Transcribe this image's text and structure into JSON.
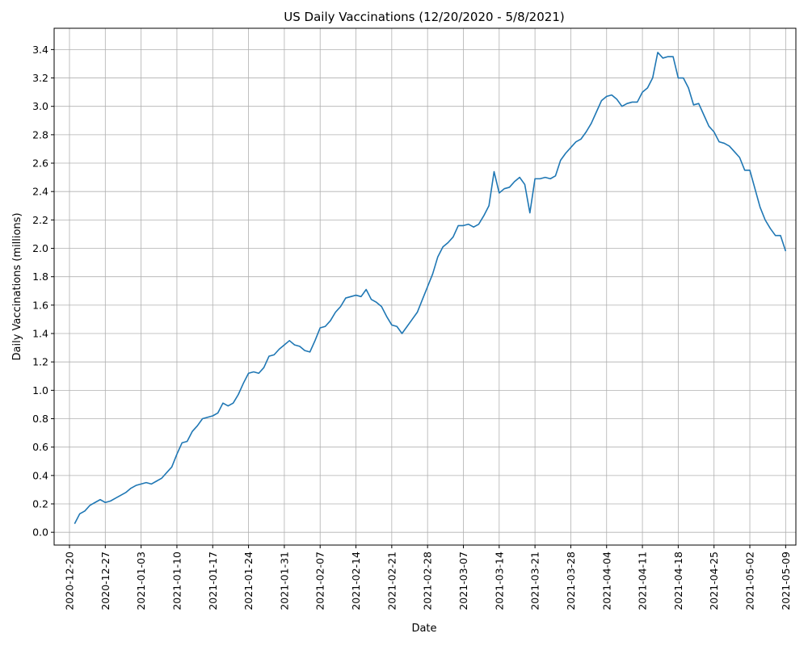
{
  "chart_data": {
    "type": "line",
    "title": "US Daily Vaccinations (12/20/2020 - 5/8/2021)",
    "xlabel": "Date",
    "ylabel": "Daily Vaccinations (millions)",
    "x_start": "2020-12-21",
    "x_end": "2021-05-08",
    "xlim": [
      "2020-12-17",
      "2021-05-11"
    ],
    "ylim": [
      -0.09,
      3.55
    ],
    "xticks": [
      "2020-12-20",
      "2020-12-27",
      "2021-01-03",
      "2021-01-10",
      "2021-01-17",
      "2021-01-24",
      "2021-01-31",
      "2021-02-07",
      "2021-02-14",
      "2021-02-21",
      "2021-02-28",
      "2021-03-07",
      "2021-03-14",
      "2021-03-21",
      "2021-03-28",
      "2021-04-04",
      "2021-04-11",
      "2021-04-18",
      "2021-04-25",
      "2021-05-02",
      "2021-05-09"
    ],
    "yticks": [
      "0.0",
      "0.2",
      "0.4",
      "0.6",
      "0.8",
      "1.0",
      "1.2",
      "1.4",
      "1.6",
      "1.8",
      "2.0",
      "2.2",
      "2.4",
      "2.6",
      "2.8",
      "3.0",
      "3.2",
      "3.4"
    ],
    "grid": true,
    "color": "#1f77b4",
    "series": [
      {
        "values": [
          0.06,
          0.13,
          0.15,
          0.19,
          0.21,
          0.23,
          0.21,
          0.22,
          0.24,
          0.26,
          0.28,
          0.31,
          0.33,
          0.34,
          0.35,
          0.34,
          0.36,
          0.38,
          0.42,
          0.46,
          0.55,
          0.63,
          0.64,
          0.71,
          0.75,
          0.8,
          0.81,
          0.82,
          0.84,
          0.91,
          0.89,
          0.91,
          0.97,
          1.05,
          1.12,
          1.13,
          1.12,
          1.16,
          1.24,
          1.25,
          1.29,
          1.32,
          1.35,
          1.32,
          1.31,
          1.28,
          1.27,
          1.35,
          1.44,
          1.45,
          1.49,
          1.55,
          1.59,
          1.65,
          1.66,
          1.67,
          1.66,
          1.71,
          1.64,
          1.62,
          1.59,
          1.52,
          1.46,
          1.45,
          1.4,
          1.45,
          1.5,
          1.55,
          1.64,
          1.73,
          1.82,
          1.94,
          2.01,
          2.04,
          2.08,
          2.16,
          2.16,
          2.17,
          2.15,
          2.17,
          2.23,
          2.3,
          2.54,
          2.39,
          2.42,
          2.43,
          2.47,
          2.5,
          2.45,
          2.25,
          2.49,
          2.49,
          2.5,
          2.49,
          2.51,
          2.62,
          2.67,
          2.71,
          2.75,
          2.77,
          2.82,
          2.88,
          2.96,
          3.04,
          3.07,
          3.08,
          3.05,
          3.0,
          3.02,
          3.03,
          3.03,
          3.1,
          3.13,
          3.2,
          3.38,
          3.34,
          3.35,
          3.35,
          3.2,
          3.2,
          3.13,
          3.01,
          3.02,
          2.94,
          2.86,
          2.82,
          2.75,
          2.74,
          2.72,
          2.68,
          2.64,
          2.55,
          2.55,
          2.42,
          2.29,
          2.2,
          2.14,
          2.09,
          2.09,
          1.98
        ]
      }
    ]
  }
}
